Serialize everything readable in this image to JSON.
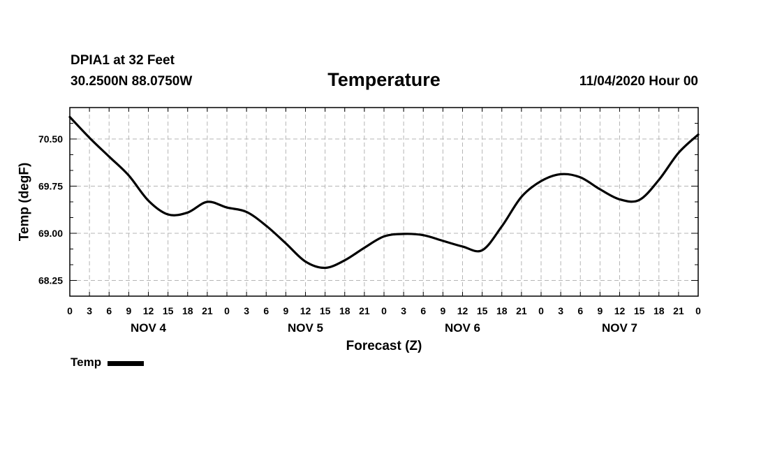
{
  "header": {
    "station": "DPIA1 at 32 Feet",
    "coords": "30.2500N 88.0750W",
    "issued": "11/04/2020 Hour 00"
  },
  "chart_data": {
    "type": "line",
    "title": "Temperature",
    "xlabel": "Forecast (Z)",
    "ylabel": "Temp (degF)",
    "xlim": [
      0,
      96
    ],
    "ylim": [
      68.0,
      71.0
    ],
    "grid": true,
    "legend": "bottom-left",
    "y_ticks": [
      "68.25",
      "69.00",
      "69.75",
      "70.50"
    ],
    "x_tick_labels": [
      "0",
      "3",
      "6",
      "9",
      "12",
      "15",
      "18",
      "21",
      "0",
      "3",
      "6",
      "9",
      "12",
      "15",
      "18",
      "21",
      "0",
      "3",
      "6",
      "9",
      "12",
      "15",
      "18",
      "21",
      "0",
      "3",
      "6",
      "9",
      "12",
      "15",
      "18",
      "21",
      "0"
    ],
    "day_labels": [
      "NOV 4",
      "NOV 5",
      "NOV 6",
      "NOV 7"
    ],
    "series": [
      {
        "name": "Temp",
        "color": "#000000",
        "x": [
          0,
          3,
          6,
          9,
          12,
          15,
          18,
          21,
          24,
          27,
          30,
          33,
          36,
          39,
          42,
          45,
          48,
          51,
          54,
          57,
          60,
          63,
          66,
          69,
          72,
          75,
          78,
          81,
          84,
          87,
          90,
          93,
          96
        ],
        "y": [
          70.85,
          70.52,
          70.22,
          69.92,
          69.52,
          69.3,
          69.33,
          69.5,
          69.41,
          69.34,
          69.12,
          68.84,
          68.55,
          68.45,
          68.57,
          68.77,
          68.95,
          68.99,
          68.97,
          68.88,
          68.79,
          68.73,
          69.11,
          69.58,
          69.83,
          69.94,
          69.89,
          69.7,
          69.54,
          69.53,
          69.85,
          70.28,
          70.57
        ]
      }
    ]
  }
}
